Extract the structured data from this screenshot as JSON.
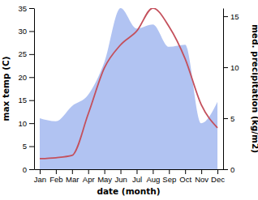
{
  "chart_data": {
    "type": "line",
    "xlabel": "date (month)",
    "ylabel": "max temp (C)",
    "y2label": "med. precipitation (kg/m2)",
    "categories": [
      "Jan",
      "Feb",
      "Mar",
      "Apr",
      "May",
      "Jun",
      "Jul",
      "Aug",
      "Sep",
      "Oct",
      "Nov",
      "Dec"
    ],
    "series": [
      {
        "type": "area",
        "axis": "y2",
        "color": "#b1c3f2",
        "values": [
          5.0,
          4.7,
          6.2,
          7.3,
          10.5,
          15.8,
          13.8,
          14.2,
          12.0,
          12.2,
          4.5,
          6.6
        ]
      },
      {
        "type": "line",
        "color": "#c4505c",
        "values": [
          2.3,
          2.5,
          3.0,
          12.0,
          22.0,
          27.0,
          30.0,
          35.0,
          31.0,
          24.0,
          14.0,
          9.0
        ]
      }
    ],
    "ylim": [
      0,
      35
    ],
    "yticks": [
      0,
      5,
      10,
      15,
      20,
      25,
      30,
      35
    ],
    "y2lim": [
      0,
      15.8
    ],
    "y2ticks": [
      0,
      5,
      10,
      15
    ]
  }
}
